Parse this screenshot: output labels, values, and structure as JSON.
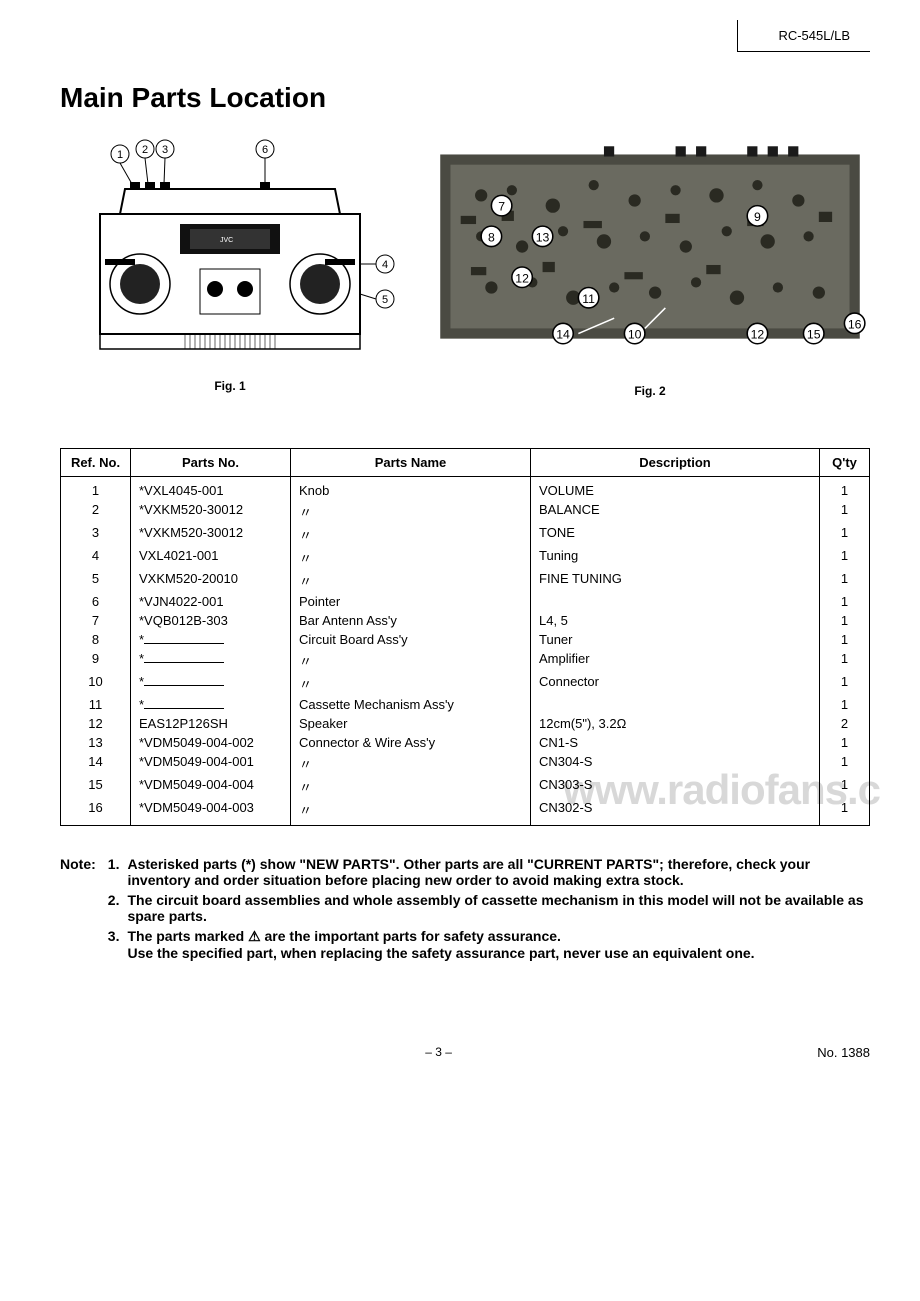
{
  "header": {
    "model": "RC-545L/LB"
  },
  "title": "Main Parts Location",
  "figures": {
    "fig1_caption": "Fig. 1",
    "fig2_caption": "Fig. 2"
  },
  "table": {
    "headers": {
      "ref": "Ref. No.",
      "parts": "Parts No.",
      "name": "Parts Name",
      "desc": "Description",
      "qty": "Q'ty"
    },
    "rows": [
      {
        "ref": "1",
        "parts": "*VXL4045-001",
        "name": "Knob",
        "desc": "VOLUME",
        "qty": "1"
      },
      {
        "ref": "2",
        "parts": "*VXKM520-30012",
        "name": "〃",
        "desc": "BALANCE",
        "qty": "1"
      },
      {
        "ref": "3",
        "parts": "*VXKM520-30012",
        "name": "〃",
        "desc": "TONE",
        "qty": "1"
      },
      {
        "ref": "4",
        "parts": "VXL4021-001",
        "name": "〃",
        "desc": "Tuning",
        "qty": "1"
      },
      {
        "ref": "5",
        "parts": "VXKM520-20010",
        "name": "〃",
        "desc": "FINE TUNING",
        "qty": "1"
      },
      {
        "ref": "6",
        "parts": "*VJN4022-001",
        "name": "Pointer",
        "desc": "",
        "qty": "1"
      },
      {
        "ref": "7",
        "parts": "*VQB012B-303",
        "name": "Bar Antenn Ass'y",
        "desc": "L4, 5",
        "qty": "1"
      },
      {
        "ref": "8",
        "parts": "*",
        "name": "Circuit Board Ass'y",
        "desc": "Tuner",
        "qty": "1",
        "blank": true
      },
      {
        "ref": "9",
        "parts": "*",
        "name": "〃",
        "desc": "Amplifier",
        "qty": "1",
        "blank": true
      },
      {
        "ref": "10",
        "parts": "*",
        "name": "〃",
        "desc": "Connector",
        "qty": "1",
        "blank": true
      },
      {
        "ref": "11",
        "parts": "*",
        "name": "Cassette Mechanism Ass'y",
        "desc": "",
        "qty": "1",
        "blank": true
      },
      {
        "ref": "12",
        "parts": "EAS12P126SH",
        "name": "Speaker",
        "desc": "12cm(5\"), 3.2Ω",
        "qty": "2"
      },
      {
        "ref": "13",
        "parts": "*VDM5049-004-002",
        "name": "Connector & Wire Ass'y",
        "desc": "CN1-S",
        "qty": "1"
      },
      {
        "ref": "14",
        "parts": "*VDM5049-004-001",
        "name": "〃",
        "desc": "CN304-S",
        "qty": "1"
      },
      {
        "ref": "15",
        "parts": "*VDM5049-004-004",
        "name": "〃",
        "desc": "CN303-S",
        "qty": "1"
      },
      {
        "ref": "16",
        "parts": "*VDM5049-004-003",
        "name": "〃",
        "desc": "CN302-S",
        "qty": "1"
      }
    ]
  },
  "notes": {
    "label": "Note:",
    "items": [
      {
        "num": "1.",
        "text": "Asterisked parts (*) show \"NEW PARTS\". Other parts are all \"CURRENT PARTS\"; therefore, check your inventory and order situation before placing new order to avoid making extra stock."
      },
      {
        "num": "2.",
        "text": "The circuit board assemblies and whole assembly of cassette mechanism in this model will not be available as spare parts."
      },
      {
        "num": "3.",
        "text": "The parts marked ⚠ are the important parts for safety assurance.\nUse the specified part, when replacing the safety assurance part, never use an equivalent one."
      }
    ]
  },
  "footer": {
    "page": "– 3 –",
    "docnum": "No. 1388"
  },
  "watermark": "www.radiofans.c"
}
